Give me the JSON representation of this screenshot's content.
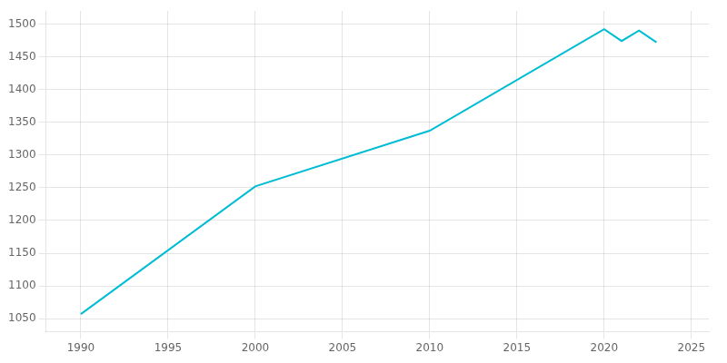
{
  "chart_data": {
    "type": "line",
    "x": [
      1990,
      2000,
      2010,
      2020,
      2021,
      2022,
      2023
    ],
    "values": [
      1057,
      1252,
      1337,
      1492,
      1474,
      1490,
      1472
    ],
    "color": "#00BCD4",
    "xlim": [
      1988,
      2026
    ],
    "ylim": [
      1030,
      1520
    ],
    "xticks": [
      1990,
      1995,
      2000,
      2005,
      2010,
      2015,
      2020,
      2025
    ],
    "yticks": [
      1050,
      1100,
      1150,
      1200,
      1250,
      1300,
      1350,
      1400,
      1450,
      1500
    ],
    "grid": true
  }
}
